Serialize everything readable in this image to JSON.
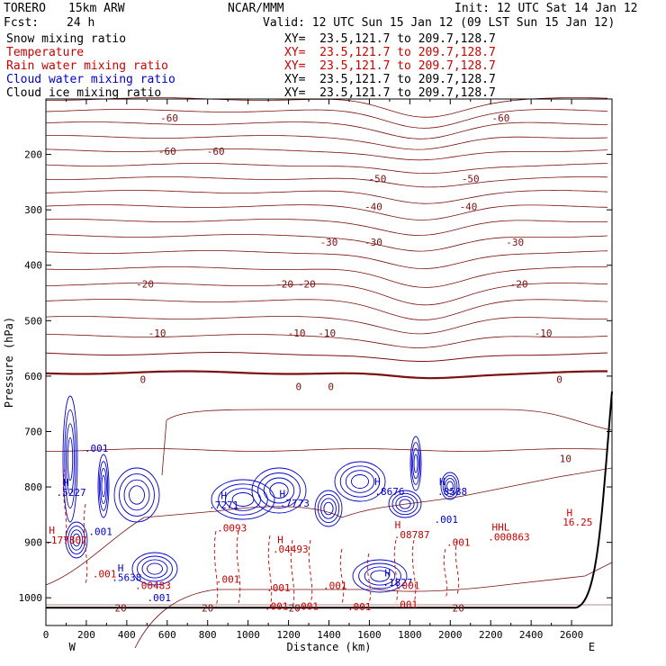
{
  "header": {
    "model": "TORERO",
    "resolution": "15km ARW",
    "org": "NCAR/MMM",
    "init": "Init: 12 UTC Sat 14 Jan 12",
    "fcst_label": "Fcst:",
    "fcst_value": "24 h",
    "valid": "Valid: 12 UTC Sun 15 Jan 12 (09 LST Sun 15 Jan 12)"
  },
  "fields": [
    {
      "name": "Snow mixing ratio",
      "xy": "XY=  23.5,121.7 to 209.7,128.7",
      "color": "#000000",
      "xy_color": "#000000"
    },
    {
      "name": "Temperature",
      "xy": "XY=  23.5,121.7 to 209.7,128.7",
      "color": "#cc0000",
      "xy_color": "#cc0000"
    },
    {
      "name": "Rain water mixing ratio",
      "xy": "XY=  23.5,121.7 to 209.7,128.7",
      "color": "#cc0000",
      "xy_color": "#cc0000"
    },
    {
      "name": "Cloud water mixing ratio",
      "xy": "XY=  23.5,121.7 to 209.7,128.7",
      "color": "#0000cc",
      "xy_color": "#000000"
    },
    {
      "name": "Cloud ice mixing ratio",
      "xy": "XY=  23.5,121.7 to 209.7,128.7",
      "color": "#000000",
      "xy_color": "#000000"
    }
  ],
  "chart_data": {
    "type": "contour",
    "title": "Cross section",
    "xlabel": "Distance (km)",
    "ylabel": "Pressure (hPa)",
    "xlim": [
      0,
      2800
    ],
    "ylim": [
      1050,
      100
    ],
    "x_ticks": [
      0,
      200,
      400,
      600,
      800,
      1000,
      1200,
      1400,
      1600,
      1800,
      2000,
      2200,
      2400,
      2600
    ],
    "x_tick_labels": [
      "0",
      "200",
      "400",
      "600",
      "800",
      "1000",
      "1200",
      "1400",
      "1600",
      "1800",
      "2000",
      "2200",
      "2400",
      "2600"
    ],
    "y_ticks": [
      200,
      300,
      400,
      500,
      600,
      700,
      800,
      900,
      1000
    ],
    "y_tick_labels": [
      "200",
      "300",
      "400",
      "500",
      "600",
      "700",
      "800",
      "900",
      "1000"
    ],
    "endpoints": {
      "left": "W",
      "right": "E"
    },
    "temperature_contours": [
      {
        "value": -60,
        "labels": [
          {
            "text": "-60",
            "x": 610,
            "p": 134
          },
          {
            "text": "-60",
            "x": 2250,
            "p": 134
          }
        ]
      },
      {
        "value": -60,
        "labels": [
          {
            "text": "-60",
            "x": 600,
            "p": 194
          },
          {
            "text": "-60",
            "x": 840,
            "p": 194
          }
        ]
      },
      {
        "value": -50,
        "labels": [
          {
            "text": "-50",
            "x": 1640,
            "p": 244
          },
          {
            "text": "-50",
            "x": 2100,
            "p": 244
          }
        ]
      },
      {
        "value": -40,
        "labels": [
          {
            "text": "-40",
            "x": 1620,
            "p": 294
          },
          {
            "text": "-40",
            "x": 2090,
            "p": 294
          }
        ]
      },
      {
        "value": -30,
        "labels": [
          {
            "text": "-30",
            "x": 1400,
            "p": 358
          },
          {
            "text": "-30",
            "x": 1620,
            "p": 358
          },
          {
            "text": "-30",
            "x": 2320,
            "p": 358
          }
        ]
      },
      {
        "value": -20,
        "labels": [
          {
            "text": "-20",
            "x": 490,
            "p": 434
          },
          {
            "text": "-20",
            "x": 1180,
            "p": 434
          },
          {
            "text": "-20",
            "x": 1290,
            "p": 434
          },
          {
            "text": "-20",
            "x": 2340,
            "p": 434
          }
        ]
      },
      {
        "value": -10,
        "labels": [
          {
            "text": "-10",
            "x": 550,
            "p": 522
          },
          {
            "text": "-10",
            "x": 1240,
            "p": 522
          },
          {
            "text": "-10",
            "x": 1390,
            "p": 522
          },
          {
            "text": "-10",
            "x": 2460,
            "p": 522
          }
        ]
      },
      {
        "value": 0,
        "labels": [
          {
            "text": "0",
            "x": 480,
            "p": 606
          },
          {
            "text": "0",
            "x": 1250,
            "p": 619
          },
          {
            "text": "0",
            "x": 1410,
            "p": 619
          },
          {
            "text": "0",
            "x": 2540,
            "p": 606
          }
        ]
      },
      {
        "value": 10,
        "labels": [
          {
            "text": "10",
            "x": 2570,
            "p": 749
          }
        ]
      },
      {
        "value": 20,
        "labels": [
          {
            "text": "20",
            "x": 370,
            "p": 1018
          },
          {
            "text": "20",
            "x": 800,
            "p": 1018
          },
          {
            "text": "20",
            "x": 1230,
            "p": 1018
          },
          {
            "text": "20",
            "x": 2040,
            "p": 1018
          }
        ]
      }
    ],
    "max_labels": [
      {
        "text": "H",
        "x": 100,
        "p": 792,
        "color": "#0000cc"
      },
      {
        "text": ".5227",
        "x": 125,
        "p": 810,
        "color": "#0000cc"
      },
      {
        "text": ".001",
        "x": 250,
        "p": 730,
        "color": "#0000cc"
      },
      {
        "text": "H",
        "x": 30,
        "p": 878,
        "color": "#cc0000"
      },
      {
        "text": ".177807",
        "x": 100,
        "p": 896,
        "color": "#cc0000"
      },
      {
        "text": ".001",
        "x": 270,
        "p": 880,
        "color": "#0000cc"
      },
      {
        "text": ".001",
        "x": 290,
        "p": 957,
        "color": "#cc0000"
      },
      {
        "text": "H",
        "x": 370,
        "p": 946,
        "color": "#0000cc"
      },
      {
        "text": ".5638",
        "x": 400,
        "p": 963,
        "color": "#0000cc"
      },
      {
        "text": ".00483",
        "x": 530,
        "p": 978,
        "color": "#cc0000"
      },
      {
        "text": ".001",
        "x": 560,
        "p": 1000,
        "color": "#0000cc"
      },
      {
        "text": "H",
        "x": 880,
        "p": 815,
        "color": "#0000cc"
      },
      {
        "text": ".7271",
        "x": 880,
        "p": 832,
        "color": "#0000cc"
      },
      {
        "text": ".0093",
        "x": 920,
        "p": 874,
        "color": "#cc0000"
      },
      {
        "text": ".001",
        "x": 900,
        "p": 966,
        "color": "#cc0000"
      },
      {
        "text": "H",
        "x": 1170,
        "p": 812,
        "color": "#0000cc"
      },
      {
        "text": ".7773",
        "x": 1230,
        "p": 829,
        "color": "#0000cc"
      },
      {
        "text": "H",
        "x": 1160,
        "p": 895,
        "color": "#cc0000"
      },
      {
        "text": ".04493",
        "x": 1210,
        "p": 912,
        "color": "#cc0000"
      },
      {
        "text": ".001",
        "x": 1150,
        "p": 982,
        "color": "#cc0000"
      },
      {
        "text": ".001",
        "x": 1140,
        "p": 1015,
        "color": "#cc0000"
      },
      {
        "text": ".001",
        "x": 1290,
        "p": 1015,
        "color": "#cc0000"
      },
      {
        "text": ".001",
        "x": 1430,
        "p": 978,
        "color": "#cc0000"
      },
      {
        "text": "H",
        "x": 1640,
        "p": 790,
        "color": "#0000cc"
      },
      {
        "text": ".8676",
        "x": 1700,
        "p": 808,
        "color": "#0000cc"
      },
      {
        "text": "H",
        "x": 1960,
        "p": 790,
        "color": "#0000cc"
      },
      {
        "text": ".8588",
        "x": 2010,
        "p": 808,
        "color": "#0000cc"
      },
      {
        "text": "H",
        "x": 1740,
        "p": 868,
        "color": "#cc0000"
      },
      {
        "text": ".08787",
        "x": 1810,
        "p": 886,
        "color": "#cc0000"
      },
      {
        "text": ".001",
        "x": 1980,
        "p": 858,
        "color": "#0000cc"
      },
      {
        "text": ".001",
        "x": 2040,
        "p": 900,
        "color": "#cc0000"
      },
      {
        "text": "H",
        "x": 1690,
        "p": 955,
        "color": "#0000cc"
      },
      {
        "text": ".1827",
        "x": 1740,
        "p": 972,
        "color": "#0000cc"
      },
      {
        "text": ".001",
        "x": 1790,
        "p": 978,
        "color": "#cc0000"
      },
      {
        "text": ".001",
        "x": 1550,
        "p": 1016,
        "color": "#cc0000"
      },
      {
        "text": ".001",
        "x": 1780,
        "p": 1012,
        "color": "#cc0000"
      },
      {
        "text": "HHL",
        "x": 2250,
        "p": 872,
        "color": "#cc0000"
      },
      {
        "text": ".000863",
        "x": 2290,
        "p": 890,
        "color": "#cc0000"
      },
      {
        "text": "H",
        "x": 2590,
        "p": 846,
        "color": "#cc0000"
      },
      {
        "text": "16.25",
        "x": 2630,
        "p": 863,
        "color": "#cc0000"
      }
    ],
    "terrain": {
      "p_surface": 1018,
      "rise_start_km": 2620
    }
  }
}
